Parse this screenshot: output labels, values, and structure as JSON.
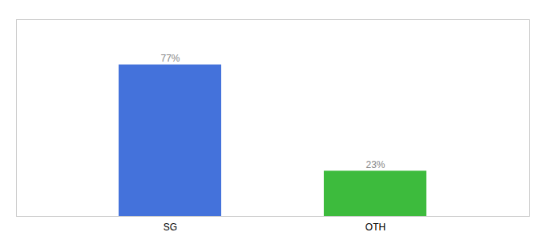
{
  "chart_data": {
    "type": "bar",
    "categories": [
      "SG",
      "OTH"
    ],
    "values": [
      77,
      23
    ],
    "value_labels": [
      "77%",
      "23%"
    ],
    "colors": [
      "#4472db",
      "#3dbb3d"
    ],
    "ylim": [
      0,
      100
    ],
    "data_labels": true,
    "tick_labels": "x"
  }
}
